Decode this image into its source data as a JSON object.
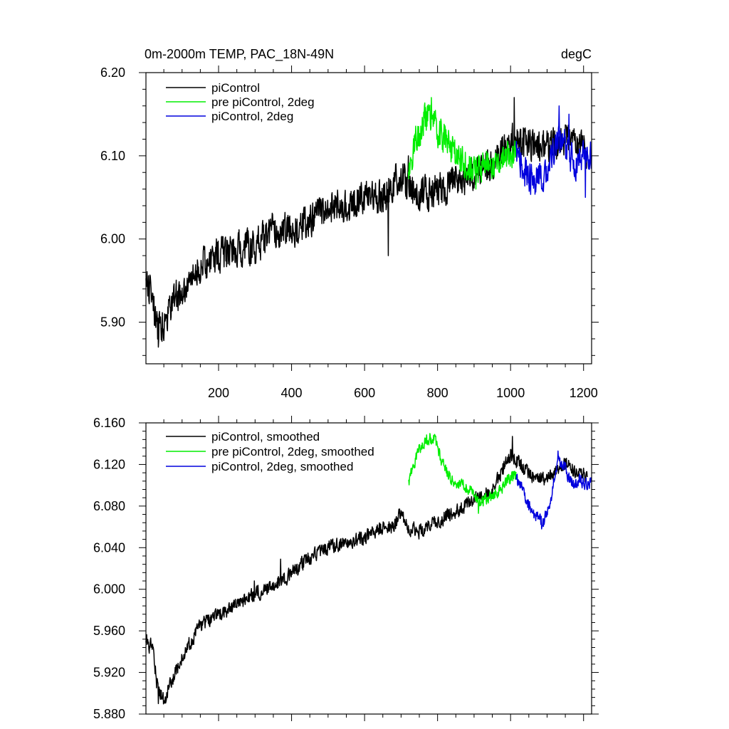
{
  "chart_data": [
    {
      "type": "line",
      "title": "0m-2000m TEMP, PAC_18N-49N",
      "units": "degC",
      "xlim": [
        1,
        1222
      ],
      "ylim": [
        5.85,
        6.2
      ],
      "x_ticks": [
        200,
        400,
        600,
        800,
        1000,
        1200
      ],
      "x_tick_labels": [
        "200",
        "400",
        "600",
        "800",
        "1000",
        "1200"
      ],
      "y_ticks": [
        5.9,
        6.0,
        6.1,
        6.2
      ],
      "y_tick_labels": [
        "5.90",
        "6.00",
        "6.10",
        "6.20"
      ],
      "legend_position": "top-left",
      "series": [
        {
          "name": "piControl",
          "color": "#000000",
          "x_start": 1,
          "x_end": 1210,
          "n_points": 1210,
          "anchors_x": [
            1,
            20,
            30,
            50,
            80,
            100,
            150,
            200,
            250,
            300,
            350,
            400,
            450,
            500,
            550,
            600,
            650,
            700,
            720,
            750,
            800,
            850,
            900,
            950,
            1000,
            1050,
            1100,
            1150,
            1200,
            1210
          ],
          "anchors_y": [
            5.95,
            5.93,
            5.89,
            5.9,
            5.93,
            5.93,
            5.97,
            5.98,
            5.99,
            5.99,
            6.01,
            6.01,
            6.02,
            6.04,
            6.04,
            6.05,
            6.05,
            6.08,
            6.06,
            6.05,
            6.06,
            6.07,
            6.08,
            6.09,
            6.12,
            6.11,
            6.11,
            6.12,
            6.11,
            6.11
          ],
          "noise": 0.018,
          "extremes": [
            [
              35,
              5.87
            ],
            [
              665,
              5.98
            ],
            [
              1010,
              6.17
            ],
            [
              720,
              6.1
            ]
          ]
        },
        {
          "name": "pre piControl, 2deg",
          "color": "#00ee00",
          "x_start": 720,
          "x_end": 1015,
          "n_points": 296,
          "anchors_x": [
            720,
            740,
            760,
            780,
            800,
            820,
            850,
            880,
            900,
            930,
            960,
            990,
            1015
          ],
          "anchors_y": [
            6.08,
            6.12,
            6.14,
            6.15,
            6.13,
            6.12,
            6.1,
            6.09,
            6.08,
            6.09,
            6.09,
            6.1,
            6.11
          ],
          "noise": 0.016,
          "extremes": [
            [
              783,
              6.17
            ],
            [
              905,
              6.06
            ]
          ]
        },
        {
          "name": "piControl, 2deg",
          "color": "#0000dd",
          "x_start": 1015,
          "x_end": 1222,
          "n_points": 208,
          "anchors_x": [
            1015,
            1040,
            1060,
            1080,
            1100,
            1130,
            1150,
            1180,
            1200,
            1222
          ],
          "anchors_y": [
            6.1,
            6.08,
            6.07,
            6.07,
            6.08,
            6.12,
            6.11,
            6.09,
            6.1,
            6.1
          ],
          "noise": 0.017,
          "extremes": [
            [
              1133,
              6.16
            ],
            [
              1160,
              6.15
            ],
            [
              1205,
              6.05
            ]
          ]
        }
      ]
    },
    {
      "type": "line",
      "title": "",
      "units": "",
      "xlim": [
        1,
        1222
      ],
      "ylim": [
        5.88,
        6.16
      ],
      "x_ticks": [
        200,
        400,
        600,
        800,
        1000,
        1200
      ],
      "x_tick_labels": [
        "",
        "",
        "",
        "",
        "",
        ""
      ],
      "y_ticks": [
        5.88,
        5.92,
        5.96,
        6.0,
        6.04,
        6.08,
        6.12,
        6.16
      ],
      "y_tick_labels": [
        "5.880",
        "5.920",
        "5.960",
        "6.000",
        "6.040",
        "6.080",
        "6.120",
        "6.160"
      ],
      "legend_position": "top-left",
      "series": [
        {
          "name": "piControl, smoothed",
          "color": "#000000",
          "x_start": 1,
          "x_end": 1210,
          "n_points": 1210,
          "anchors_x": [
            1,
            10,
            20,
            30,
            50,
            70,
            100,
            150,
            200,
            250,
            300,
            350,
            400,
            450,
            500,
            550,
            600,
            650,
            680,
            700,
            720,
            750,
            800,
            850,
            900,
            950,
            1000,
            1050,
            1100,
            1150,
            1200,
            1210
          ],
          "anchors_y": [
            5.953,
            5.945,
            5.95,
            5.91,
            5.893,
            5.91,
            5.935,
            5.965,
            5.975,
            5.985,
            5.995,
            6.005,
            6.015,
            6.03,
            6.04,
            6.045,
            6.05,
            6.06,
            6.06,
            6.075,
            6.06,
            6.055,
            6.065,
            6.075,
            6.085,
            6.095,
            6.13,
            6.11,
            6.105,
            6.12,
            6.11,
            6.108
          ],
          "noise": 0.006,
          "extremes": [
            [
              35,
              5.89
            ],
            [
              1005,
              6.147
            ],
            [
              370,
              6.029
            ],
            [
              298,
              6.008
            ]
          ]
        },
        {
          "name": "pre piControl, 2deg, smoothed",
          "color": "#00ee00",
          "x_start": 720,
          "x_end": 1015,
          "n_points": 296,
          "anchors_x": [
            720,
            730,
            750,
            770,
            790,
            810,
            830,
            850,
            870,
            890,
            910,
            930,
            950,
            970,
            990,
            1015
          ],
          "anchors_y": [
            6.1,
            6.115,
            6.135,
            6.145,
            6.145,
            6.125,
            6.11,
            6.1,
            6.1,
            6.095,
            6.085,
            6.085,
            6.09,
            6.095,
            6.105,
            6.11
          ],
          "noise": 0.005,
          "extremes": [
            [
              780,
              6.148
            ],
            [
              912,
              6.073
            ]
          ]
        },
        {
          "name": "piControl, 2deg, smoothed",
          "color": "#0000dd",
          "x_start": 1015,
          "x_end": 1222,
          "n_points": 208,
          "anchors_x": [
            1015,
            1030,
            1050,
            1070,
            1090,
            1110,
            1130,
            1150,
            1170,
            1190,
            1210,
            1222
          ],
          "anchors_y": [
            6.105,
            6.1,
            6.08,
            6.07,
            6.065,
            6.085,
            6.125,
            6.115,
            6.1,
            6.105,
            6.1,
            6.105
          ],
          "noise": 0.005,
          "extremes": [
            [
              1085,
              6.058
            ],
            [
              1130,
              6.133
            ]
          ]
        }
      ]
    }
  ]
}
